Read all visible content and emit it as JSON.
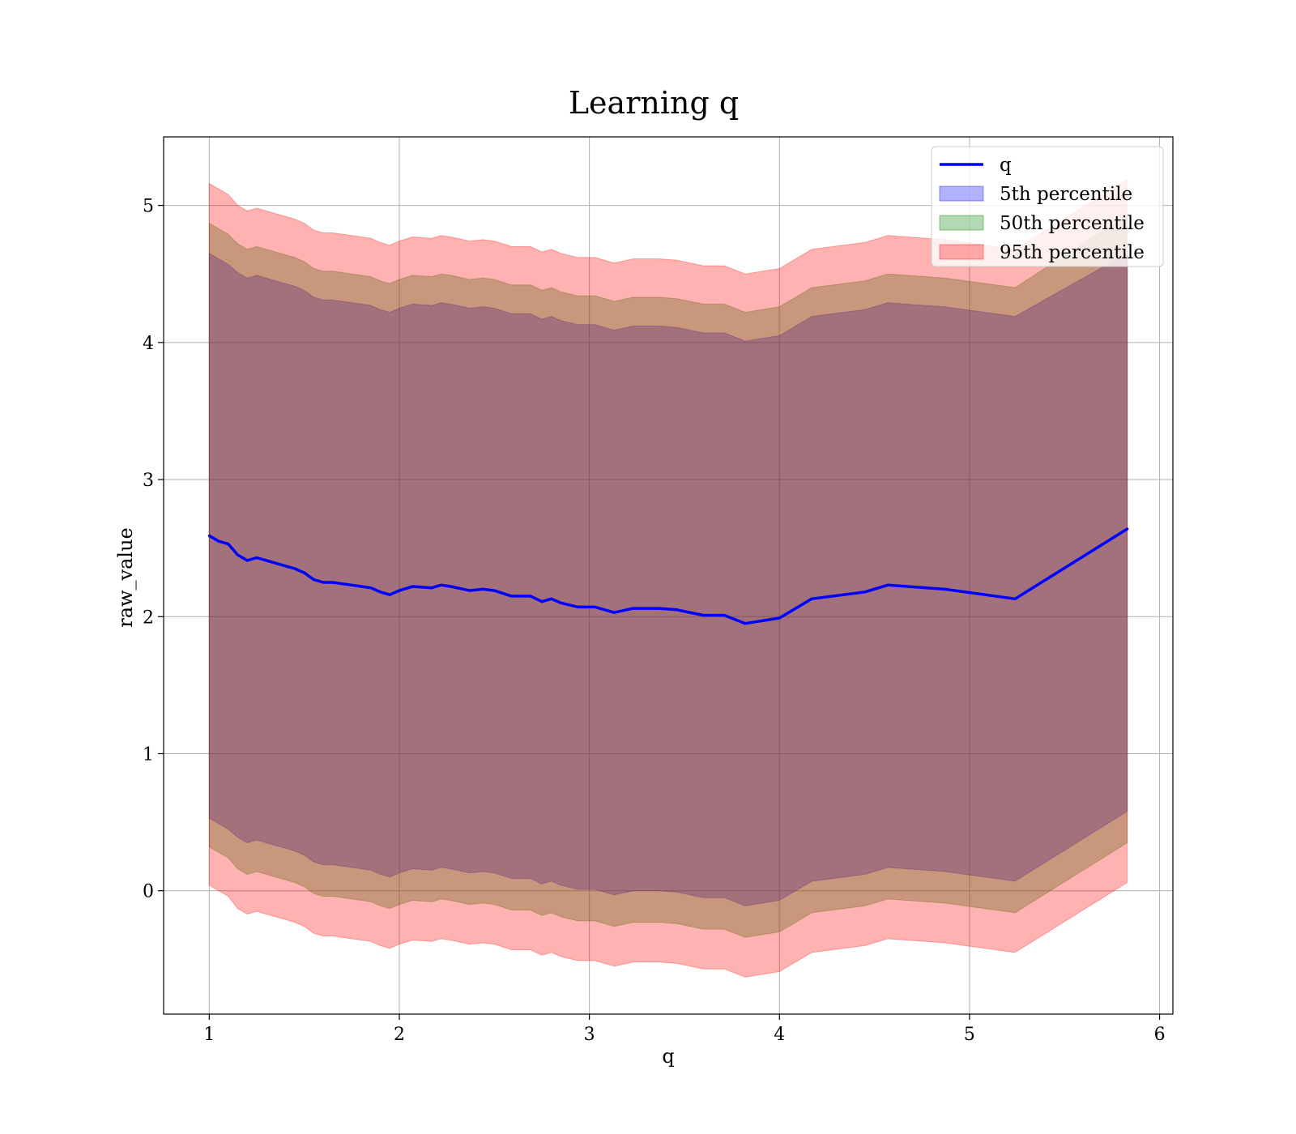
{
  "chart_data": {
    "type": "line",
    "title": "Learning q",
    "xlabel": "q",
    "ylabel": "raw_value",
    "xlim": [
      0.76,
      6.07
    ],
    "ylim": [
      -0.9,
      5.5
    ],
    "xticks": [
      1,
      2,
      3,
      4,
      5,
      6
    ],
    "yticks": [
      0,
      1,
      2,
      3,
      4,
      5
    ],
    "grid": true,
    "legend_position": "top-right",
    "x": [
      1.0,
      1.05,
      1.1,
      1.15,
      1.2,
      1.25,
      1.3,
      1.35,
      1.4,
      1.45,
      1.5,
      1.55,
      1.6,
      1.65,
      1.7,
      1.75,
      1.8,
      1.85,
      1.9,
      1.95,
      2.0,
      2.07,
      2.17,
      2.22,
      2.27,
      2.37,
      2.44,
      2.5,
      2.59,
      2.69,
      2.75,
      2.8,
      2.85,
      2.94,
      3.03,
      3.13,
      3.23,
      3.37,
      3.46,
      3.6,
      3.71,
      3.82,
      4.0,
      4.17,
      4.45,
      4.57,
      4.87,
      5.24,
      5.83
    ],
    "series": [
      {
        "name": "q",
        "kind": "line",
        "color": "#0000ff",
        "y": [
          2.59,
          2.55,
          2.53,
          2.45,
          2.41,
          2.43,
          2.41,
          2.39,
          2.37,
          2.35,
          2.32,
          2.27,
          2.25,
          2.25,
          2.24,
          2.23,
          2.22,
          2.21,
          2.18,
          2.16,
          2.19,
          2.22,
          2.21,
          2.23,
          2.22,
          2.19,
          2.2,
          2.19,
          2.15,
          2.15,
          2.11,
          2.13,
          2.1,
          2.07,
          2.07,
          2.03,
          2.06,
          2.06,
          2.05,
          2.01,
          2.01,
          1.95,
          1.99,
          2.13,
          2.18,
          2.23,
          2.2,
          2.13,
          2.64
        ]
      },
      {
        "name": "5th percentile",
        "kind": "band",
        "color": "#0000ff",
        "opacity": 0.3,
        "lower": [
          0.53,
          0.49,
          0.45,
          0.39,
          0.35,
          0.37,
          0.35,
          0.33,
          0.31,
          0.29,
          0.26,
          0.21,
          0.19,
          0.19,
          0.18,
          0.17,
          0.16,
          0.15,
          0.12,
          0.1,
          0.13,
          0.16,
          0.15,
          0.17,
          0.16,
          0.13,
          0.14,
          0.13,
          0.09,
          0.09,
          0.05,
          0.07,
          0.04,
          0.01,
          0.01,
          -0.03,
          0.0,
          0.0,
          -0.01,
          -0.05,
          -0.05,
          -0.11,
          -0.07,
          0.07,
          0.12,
          0.17,
          0.14,
          0.07,
          0.58
        ],
        "upper": [
          4.65,
          4.61,
          4.57,
          4.51,
          4.47,
          4.49,
          4.47,
          4.45,
          4.43,
          4.41,
          4.38,
          4.33,
          4.31,
          4.31,
          4.3,
          4.29,
          4.28,
          4.27,
          4.24,
          4.22,
          4.25,
          4.28,
          4.27,
          4.29,
          4.28,
          4.25,
          4.26,
          4.25,
          4.21,
          4.21,
          4.17,
          4.19,
          4.16,
          4.13,
          4.13,
          4.09,
          4.12,
          4.12,
          4.11,
          4.07,
          4.07,
          4.01,
          4.05,
          4.19,
          4.24,
          4.29,
          4.26,
          4.19,
          4.65
        ]
      },
      {
        "name": "50th percentile",
        "kind": "band",
        "color": "#008000",
        "opacity": 0.3,
        "lower": [
          0.32,
          0.28,
          0.24,
          0.16,
          0.12,
          0.14,
          0.12,
          0.1,
          0.08,
          0.06,
          0.03,
          -0.02,
          -0.04,
          -0.04,
          -0.05,
          -0.06,
          -0.07,
          -0.08,
          -0.11,
          -0.13,
          -0.1,
          -0.07,
          -0.08,
          -0.06,
          -0.07,
          -0.1,
          -0.09,
          -0.1,
          -0.14,
          -0.14,
          -0.18,
          -0.16,
          -0.19,
          -0.22,
          -0.22,
          -0.26,
          -0.23,
          -0.23,
          -0.24,
          -0.28,
          -0.28,
          -0.34,
          -0.3,
          -0.16,
          -0.11,
          -0.06,
          -0.09,
          -0.16,
          0.35
        ],
        "upper": [
          4.87,
          4.83,
          4.79,
          4.72,
          4.68,
          4.7,
          4.68,
          4.66,
          4.64,
          4.62,
          4.59,
          4.54,
          4.52,
          4.52,
          4.51,
          4.5,
          4.49,
          4.48,
          4.45,
          4.43,
          4.46,
          4.49,
          4.48,
          4.5,
          4.49,
          4.46,
          4.47,
          4.46,
          4.42,
          4.42,
          4.38,
          4.4,
          4.37,
          4.34,
          4.34,
          4.3,
          4.33,
          4.33,
          4.32,
          4.28,
          4.28,
          4.22,
          4.26,
          4.4,
          4.45,
          4.5,
          4.47,
          4.4,
          4.93
        ]
      },
      {
        "name": "95th percentile",
        "kind": "band",
        "color": "#ff0000",
        "opacity": 0.3,
        "lower": [
          0.04,
          0.0,
          -0.04,
          -0.13,
          -0.17,
          -0.15,
          -0.17,
          -0.19,
          -0.21,
          -0.23,
          -0.26,
          -0.31,
          -0.33,
          -0.33,
          -0.34,
          -0.35,
          -0.36,
          -0.37,
          -0.4,
          -0.42,
          -0.39,
          -0.36,
          -0.37,
          -0.35,
          -0.36,
          -0.39,
          -0.38,
          -0.39,
          -0.43,
          -0.43,
          -0.47,
          -0.45,
          -0.48,
          -0.51,
          -0.51,
          -0.55,
          -0.52,
          -0.52,
          -0.53,
          -0.57,
          -0.57,
          -0.63,
          -0.59,
          -0.45,
          -0.4,
          -0.35,
          -0.38,
          -0.45,
          0.06
        ],
        "upper": [
          5.16,
          5.12,
          5.08,
          5.0,
          4.96,
          4.98,
          4.96,
          4.94,
          4.92,
          4.9,
          4.87,
          4.82,
          4.8,
          4.8,
          4.79,
          4.78,
          4.77,
          4.76,
          4.73,
          4.71,
          4.74,
          4.77,
          4.76,
          4.78,
          4.77,
          4.74,
          4.75,
          4.74,
          4.7,
          4.7,
          4.66,
          4.68,
          4.65,
          4.62,
          4.62,
          4.58,
          4.61,
          4.61,
          4.6,
          4.56,
          4.56,
          4.5,
          4.54,
          4.68,
          4.73,
          4.78,
          4.75,
          4.68,
          5.19
        ]
      }
    ]
  }
}
